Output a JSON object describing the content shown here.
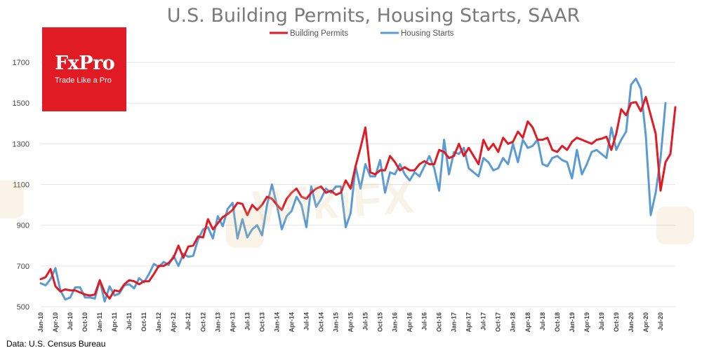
{
  "source_note": "Data: U.S. Census Bureau",
  "logo": {
    "name": "FxPro",
    "tagline": "Trade Like a Pro"
  },
  "watermark": {
    "text": "WikiFX"
  },
  "colors": {
    "permits": "#e01b23",
    "starts": "#5b9bd5",
    "grid": "#e4e4e4",
    "title": "#7a7a7a",
    "brand": "#e01b23"
  },
  "chart_data": {
    "type": "line",
    "title": "U.S. Building Permits, Housing Starts, SAAR",
    "ylim": [
      500,
      1800
    ],
    "yticks": [
      500,
      700,
      900,
      1100,
      1300,
      1500,
      1700
    ],
    "grid": true,
    "legend_position": "top-center",
    "x_start": "Jan-10",
    "x_end": "Jul-20",
    "x_ticks": [
      "Jan-10",
      "Apr-10",
      "Jul-10",
      "Oct-10",
      "Jan-11",
      "Apr-11",
      "Jul-11",
      "Oct-11",
      "Jan-12",
      "Apr-12",
      "Jul-12",
      "Oct-12",
      "Jan-13",
      "Apr-13",
      "Jul-13",
      "Oct-13",
      "Jan-14",
      "Apr-14",
      "Jul-14",
      "Oct-14",
      "Jan-15",
      "Apr-15",
      "Jul-15",
      "Oct-15",
      "Jan-16",
      "Apr-16",
      "Jul-16",
      "Oct-16",
      "Jan-17",
      "Apr-17",
      "Jul-17",
      "Oct-17",
      "Jan-18",
      "Apr-18",
      "Jul-18",
      "Oct-18",
      "Jan-19",
      "Apr-19",
      "Jul-19",
      "Oct-19",
      "Jan-20",
      "Apr-20",
      "Jul-20"
    ],
    "series": [
      {
        "name": "Building Permits",
        "color": "#e01b23",
        "values": [
          635,
          645,
          685,
          600,
          575,
          585,
          580,
          580,
          570,
          560,
          555,
          560,
          630,
          570,
          540,
          580,
          575,
          610,
          630,
          625,
          610,
          625,
          625,
          660,
          700,
          700,
          715,
          740,
          800,
          740,
          795,
          800,
          845,
          840,
          930,
          880,
          910,
          940,
          955,
          975,
          1010,
          1005,
          950,
          1000,
          975,
          1000,
          1040,
          1030,
          1000,
          975,
          1030,
          1060,
          1080,
          1040,
          1030,
          1060,
          1080,
          1090,
          1060,
          1070,
          1050,
          1060,
          1120,
          1080,
          1190,
          1280,
          1380,
          1160,
          1150,
          1170,
          1170,
          1240,
          1210,
          1170,
          1185,
          1170,
          1170,
          1200,
          1215,
          1200,
          1200,
          1270,
          1260,
          1230,
          1240,
          1300,
          1240,
          1280,
          1240,
          1200,
          1320,
          1270,
          1300,
          1260,
          1330,
          1300,
          1310,
          1360,
          1330,
          1410,
          1380,
          1320,
          1320,
          1330,
          1270,
          1260,
          1290,
          1270,
          1310,
          1330,
          1320,
          1310,
          1300,
          1320,
          1325,
          1335,
          1270,
          1350,
          1470,
          1440,
          1500,
          1505,
          1460,
          1530,
          1440,
          1350,
          1070,
          1210,
          1250,
          1480
        ]
      },
      {
        "name": "Housing Starts",
        "color": "#5b9bd5",
        "values": [
          615,
          605,
          635,
          690,
          580,
          535,
          545,
          595,
          595,
          545,
          545,
          540,
          630,
          525,
          600,
          555,
          565,
          605,
          610,
          590,
          640,
          620,
          660,
          710,
          695,
          720,
          705,
          750,
          700,
          760,
          745,
          750,
          830,
          880,
          890,
          835,
          945,
          895,
          980,
          1010,
          835,
          930,
          840,
          880,
          900,
          850,
          1000,
          1100,
          1000,
          880,
          945,
          970,
          1040,
          1000,
          890,
          1090,
          990,
          1030,
          1080,
          1060,
          1090,
          1090,
          890,
          960,
          1190,
          1080,
          1200,
          1140,
          1140,
          1220,
          1060,
          1160,
          1150,
          1200,
          1150,
          1120,
          1160,
          1140,
          1190,
          1240,
          1180,
          1070,
          1320,
          1150,
          1260,
          1250,
          1280,
          1180,
          1160,
          1140,
          1230,
          1210,
          1170,
          1180,
          1230,
          1200,
          1300,
          1210,
          1320,
          1280,
          1290,
          1320,
          1200,
          1190,
          1230,
          1240,
          1220,
          1210,
          1130,
          1270,
          1150,
          1200,
          1260,
          1270,
          1250,
          1230,
          1380,
          1270,
          1320,
          1360,
          1590,
          1620,
          1570,
          1340,
          950,
          1060,
          1230,
          1500
        ]
      }
    ]
  }
}
